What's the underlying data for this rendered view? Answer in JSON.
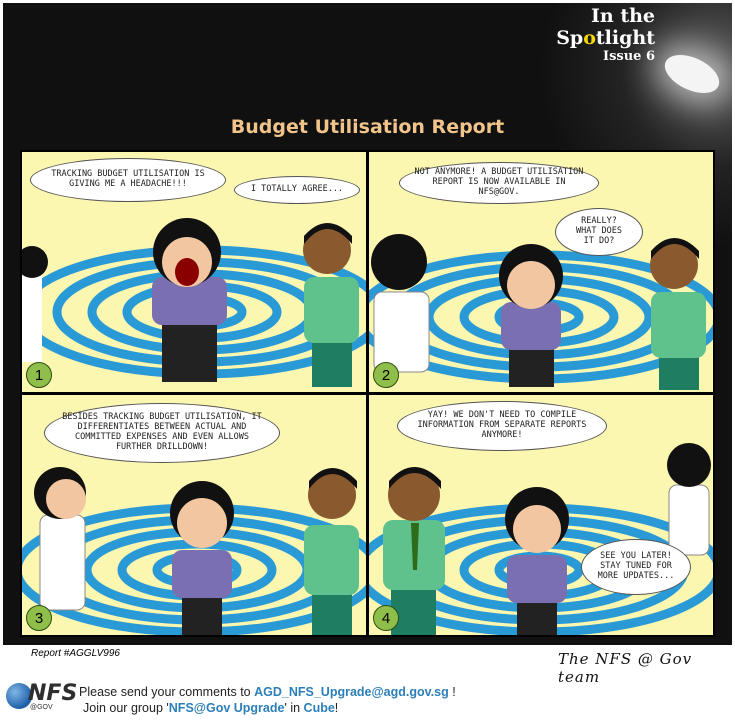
{
  "header": {
    "line1": "In the",
    "line2_pre": "Sp",
    "line2_hl": "o",
    "line2_post": "tlight",
    "line3": "Issue 6",
    "title": "Budget Utilisation Report"
  },
  "panels": [
    {
      "number": "1",
      "bubbles": [
        "Tracking budget utilisation is giving me a headache!!!",
        "I totally agree..."
      ]
    },
    {
      "number": "2",
      "bubbles": [
        "Not anymore! A budget utilisation report is now available in NFS@Gov.",
        "Really? What does it do?"
      ]
    },
    {
      "number": "3",
      "bubbles": [
        "Besides tracking budget utilisation, it differentiates between actual and committed expenses and even allows further drilldown!"
      ]
    },
    {
      "number": "4",
      "bubbles": [
        "Yay! We don't need to compile information from separate reports anymore!",
        "See you later! Stay tuned for more updates..."
      ]
    }
  ],
  "report_id": "Report #AGGLV996",
  "signature": "The NFS @ Gov team",
  "logo": {
    "text": "NFS",
    "sub": "@GOV"
  },
  "footer": {
    "line1_pre": "Please send your comments to",
    "email": "AGD_NFS_Upgrade@agd.gov.sg",
    "line1_post": "!",
    "line2_pre": "Join our group '",
    "group": "NFS@Gov Upgrade",
    "line2_mid": "' in",
    "cube": "Cube",
    "line2_post": "!"
  },
  "colors": {
    "panel_bg": "#fbf6b0",
    "rings": "#2a9ad6",
    "title": "#f0c48a",
    "link": "#2c7fb8"
  }
}
